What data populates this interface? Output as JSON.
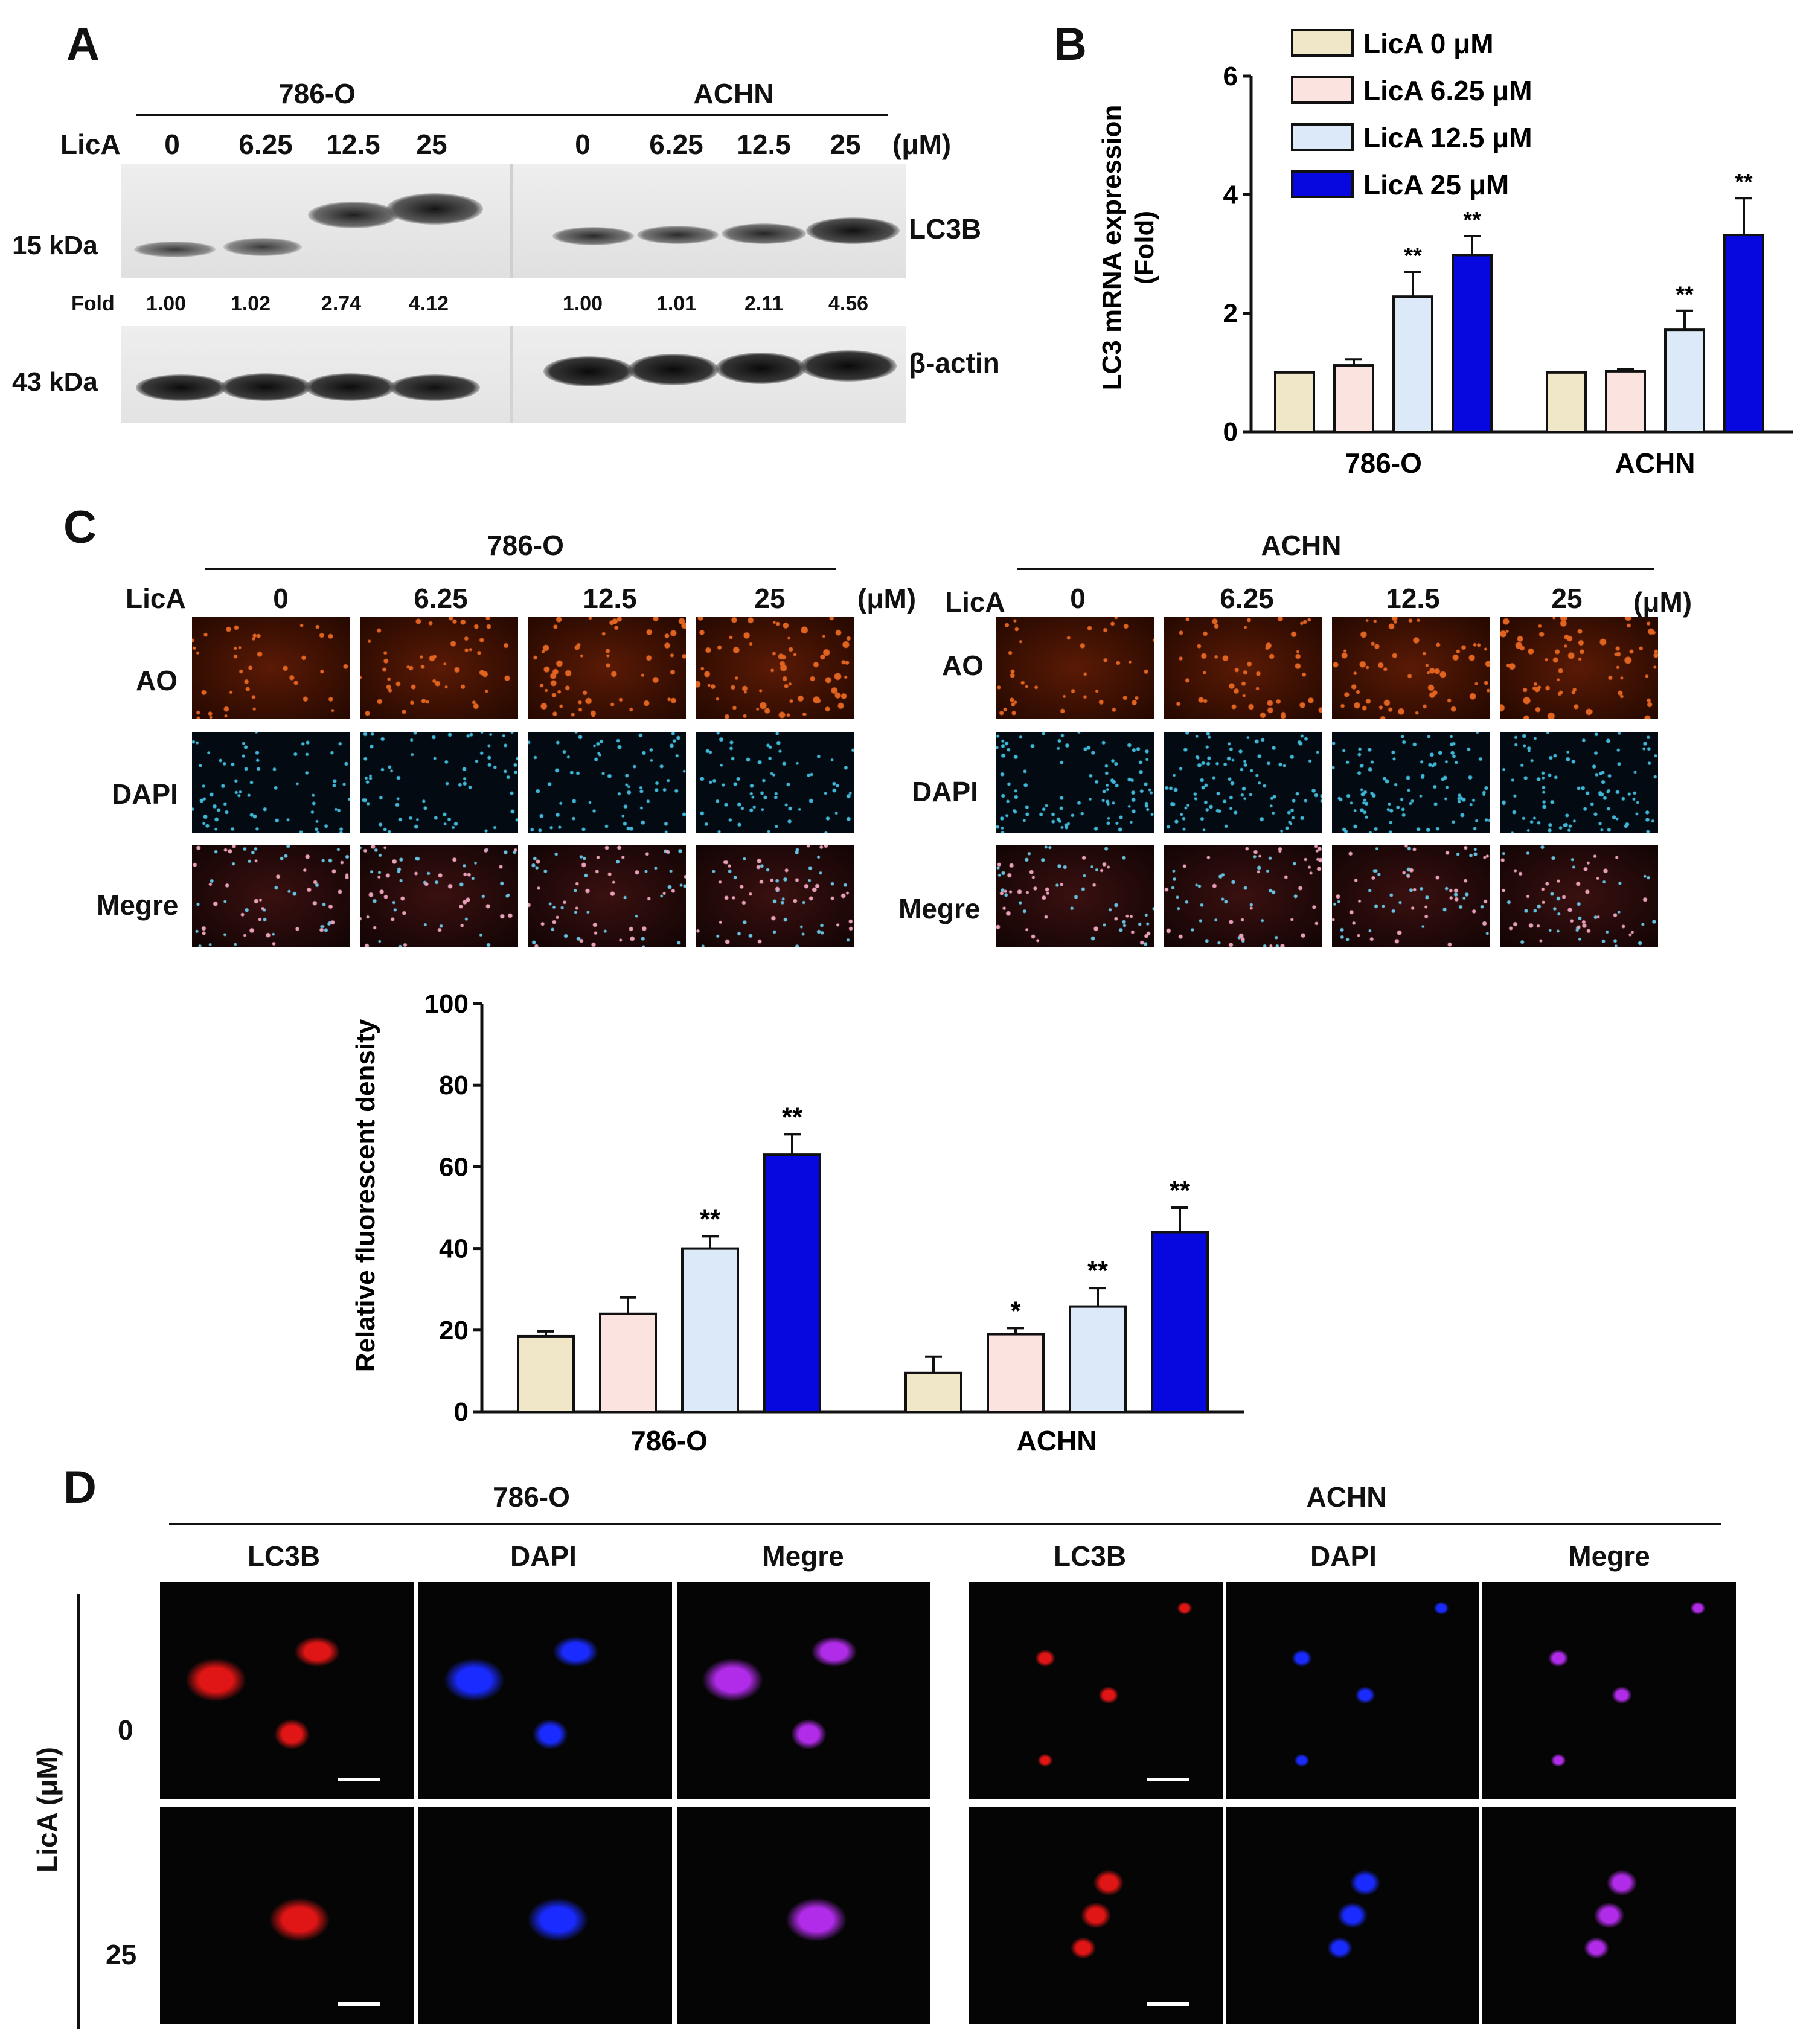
{
  "panelA": {
    "label": "A",
    "cell_lines": [
      "786-O",
      "ACHN"
    ],
    "treatment_label": "LicA",
    "doses": [
      "0",
      "6.25",
      "12.5",
      "25"
    ],
    "unit": "(μM)",
    "mw_top": "15 kDa",
    "mw_bottom": "43 kDa",
    "protein_top": "LC3B",
    "protein_bottom": "β-actin",
    "fold_label": "Fold",
    "fold_786O": [
      "1.00",
      "1.02",
      "2.74",
      "4.12"
    ],
    "fold_ACHN": [
      "1.00",
      "1.01",
      "2.11",
      "4.56"
    ]
  },
  "panelB": {
    "label": "B",
    "ylabel_line1": "LC3 mRNA expression",
    "ylabel_line2": "(Fold)"
  },
  "panelC": {
    "label": "C",
    "row_labels": [
      "AO",
      "DAPI",
      "Megre"
    ],
    "ylabel": "Relative fluorescent density"
  },
  "panelD": {
    "label": "D",
    "channel_labels": [
      "LC3B",
      "DAPI",
      "Megre"
    ],
    "axis_label": "LicA (μM)",
    "doses": [
      "0",
      "25"
    ]
  },
  "colors": {
    "dose0": "#efe7c7",
    "dose625": "#fbe3df",
    "dose125": "#dbe9f9",
    "dose25": "#0707e0",
    "ao": "#e0631f",
    "dapi": "#3fb8d8",
    "lc3b": "#e01515",
    "dapi_conf": "#1a2bff",
    "merge_conf": "#b02ce8"
  },
  "chart_data": [
    {
      "type": "bar",
      "panel": "B",
      "title": "",
      "categories": [
        "786-O",
        "ACHN"
      ],
      "series": [
        {
          "name": "LicA 0 μM",
          "values": [
            1.0,
            1.0
          ],
          "errors": [
            0,
            0
          ],
          "sig": [
            "",
            ""
          ]
        },
        {
          "name": "LicA 6.25 μM",
          "values": [
            1.12,
            1.02
          ],
          "errors": [
            0.1,
            0.03
          ],
          "sig": [
            "",
            ""
          ]
        },
        {
          "name": "LicA 12.5 μM",
          "values": [
            2.28,
            1.72
          ],
          "errors": [
            0.42,
            0.32
          ],
          "sig": [
            "**",
            "**"
          ]
        },
        {
          "name": "LicA 25 μM",
          "values": [
            2.98,
            3.32
          ],
          "errors": [
            0.32,
            0.62
          ],
          "sig": [
            "**",
            "**"
          ]
        }
      ],
      "ylabel": "LC3 mRNA expression (Fold)",
      "ylim": [
        0,
        6
      ],
      "yticks": [
        "0",
        "2",
        "4",
        "6"
      ],
      "legend": "top-left"
    },
    {
      "type": "bar",
      "panel": "C",
      "title": "",
      "categories": [
        "786-O",
        "ACHN"
      ],
      "series": [
        {
          "name": "LicA 0 μM",
          "values": [
            18.5,
            9.5
          ],
          "errors": [
            1.2,
            4.0
          ],
          "sig": [
            "",
            ""
          ]
        },
        {
          "name": "LicA 6.25 μM",
          "values": [
            24.0,
            19.0
          ],
          "errors": [
            4.0,
            1.5
          ],
          "sig": [
            "",
            "*"
          ]
        },
        {
          "name": "LicA 12.5 μM",
          "values": [
            40.0,
            25.8
          ],
          "errors": [
            3.0,
            4.5
          ],
          "sig": [
            "**",
            "**"
          ]
        },
        {
          "name": "LicA 25 μM",
          "values": [
            63.0,
            44.0
          ],
          "errors": [
            5.0,
            6.0
          ],
          "sig": [
            "**",
            "**"
          ]
        }
      ],
      "ylabel": "Relative fluorescent density",
      "ylim": [
        0,
        100
      ],
      "yticks": [
        "0",
        "20",
        "40",
        "60",
        "80",
        "100"
      ],
      "legend": "top-right"
    }
  ]
}
